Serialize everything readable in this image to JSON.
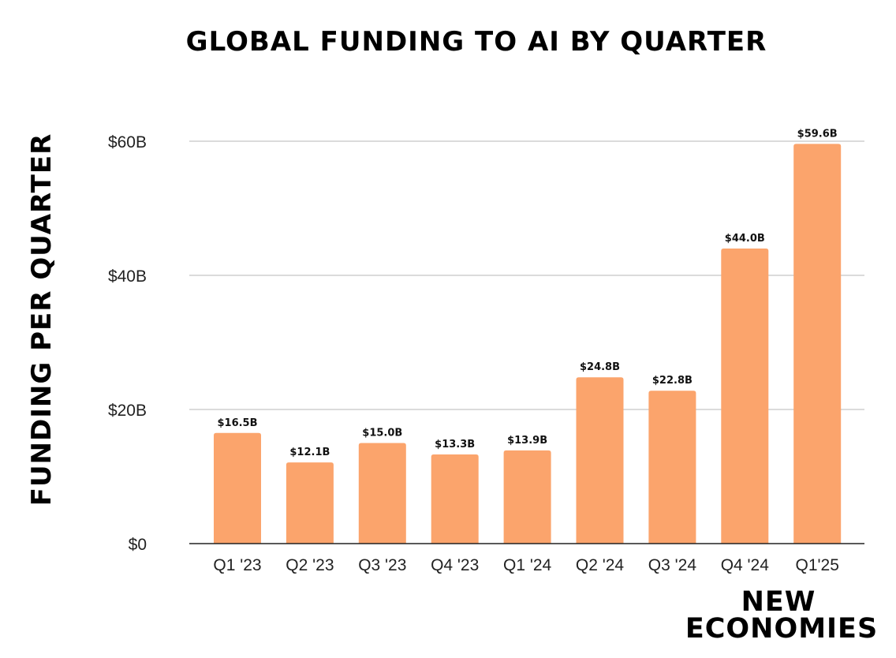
{
  "chart_data": {
    "type": "bar",
    "title": "GLOBAL FUNDING TO AI BY QUARTER",
    "ylabel": "FUNDING PER QUARTER",
    "xlabel": "",
    "categories": [
      "Q1 '23",
      "Q2 '23",
      "Q3 '23",
      "Q4 '23",
      "Q1 '24",
      "Q2 '24",
      "Q3 '24",
      "Q4 '24",
      "Q1'25"
    ],
    "values": [
      16.5,
      12.1,
      15.0,
      13.3,
      13.9,
      24.8,
      22.8,
      44.0,
      59.6
    ],
    "data_labels": [
      "$16.5B",
      "$12.1B",
      "$15.0B",
      "$13.3B",
      "$13.9B",
      "$24.8B",
      "$22.8B",
      "$44.0B",
      "$59.6B"
    ],
    "yticks": [
      0,
      20,
      40,
      60
    ],
    "ytick_labels": [
      "$0",
      "$20B",
      "$40B",
      "$60B"
    ],
    "ylim": [
      0,
      60
    ],
    "grid": true,
    "bar_color": "#FBA46C"
  },
  "branding": {
    "line1": "NEW",
    "line2": "ECONOMIES"
  }
}
